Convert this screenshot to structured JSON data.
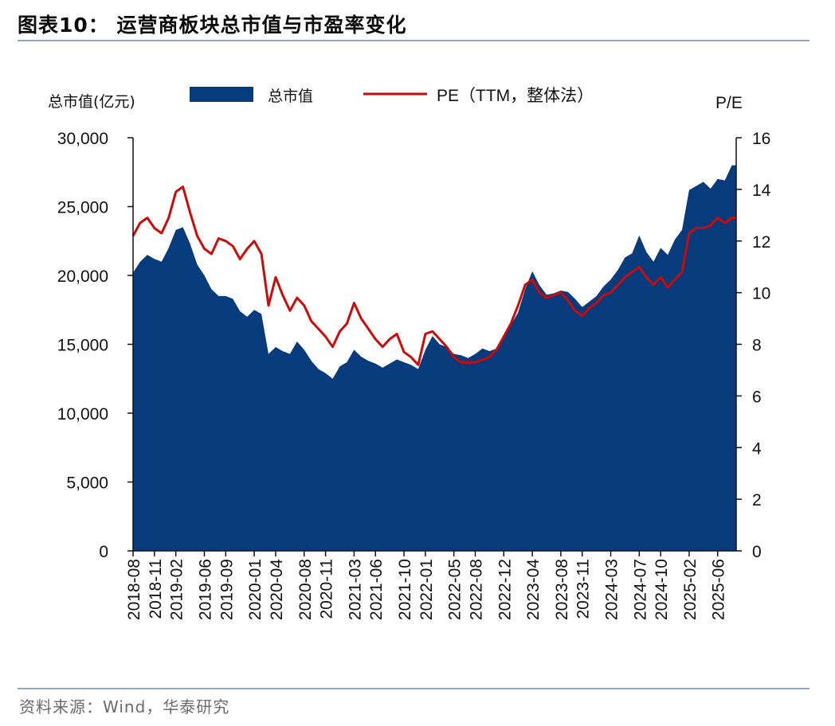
{
  "header": {
    "title": "图表10： 运营商板块总市值与市盈率变化"
  },
  "footer": {
    "source": "资料来源：Wind，华泰研究"
  },
  "colors": {
    "area": "#063b7c",
    "line": "#cc0a0a",
    "rule": "#8ea5c4"
  },
  "chart_data": {
    "type": "area",
    "left_axis": {
      "label": "总市值(亿元)",
      "min": 0,
      "max": 30000,
      "ticks": [
        "0",
        "5,000",
        "10,000",
        "15,000",
        "20,000",
        "25,000",
        "30,000"
      ]
    },
    "right_axis": {
      "label": "P/E",
      "min": 0,
      "max": 16,
      "ticks": [
        "0",
        "2",
        "4",
        "6",
        "8",
        "10",
        "12",
        "14",
        "16"
      ]
    },
    "x_ticks": [
      "2018-08",
      "2018-11",
      "2019-02",
      "2019-06",
      "2019-09",
      "2020-01",
      "2020-04",
      "2020-08",
      "2020-11",
      "2021-03",
      "2021-06",
      "2021-10",
      "2022-01",
      "2022-05",
      "2022-08",
      "2022-12",
      "2023-04",
      "2023-08",
      "2023-11",
      "2024-03",
      "2024-07",
      "2024-10",
      "2025-02",
      "2025-06"
    ],
    "legend": {
      "placement": "top",
      "items": [
        "总市值",
        "PE（TTM，整体法）"
      ]
    },
    "series": [
      {
        "name": "总市值",
        "axis": "left",
        "kind": "area",
        "points": [
          [
            "2018-08",
            20200
          ],
          [
            "2018-09",
            21000
          ],
          [
            "2018-10",
            21500
          ],
          [
            "2018-11",
            21200
          ],
          [
            "2018-12",
            21000
          ],
          [
            "2019-01",
            22000
          ],
          [
            "2019-02",
            23300
          ],
          [
            "2019-03",
            23500
          ],
          [
            "2019-04",
            22300
          ],
          [
            "2019-05",
            20800
          ],
          [
            "2019-06",
            20000
          ],
          [
            "2019-07",
            19000
          ],
          [
            "2019-08",
            18500
          ],
          [
            "2019-09",
            18500
          ],
          [
            "2019-10",
            18300
          ],
          [
            "2019-11",
            17400
          ],
          [
            "2019-12",
            17000
          ],
          [
            "2020-01",
            17500
          ],
          [
            "2020-02",
            17200
          ],
          [
            "2020-03",
            14300
          ],
          [
            "2020-04",
            14800
          ],
          [
            "2020-05",
            14500
          ],
          [
            "2020-06",
            14300
          ],
          [
            "2020-07",
            15200
          ],
          [
            "2020-08",
            14600
          ],
          [
            "2020-09",
            13800
          ],
          [
            "2020-10",
            13200
          ],
          [
            "2020-11",
            12900
          ],
          [
            "2020-12",
            12500
          ],
          [
            "2021-01",
            13400
          ],
          [
            "2021-02",
            13700
          ],
          [
            "2021-03",
            14600
          ],
          [
            "2021-04",
            14100
          ],
          [
            "2021-05",
            13800
          ],
          [
            "2021-06",
            13600
          ],
          [
            "2021-07",
            13300
          ],
          [
            "2021-08",
            13600
          ],
          [
            "2021-09",
            13900
          ],
          [
            "2021-10",
            13700
          ],
          [
            "2021-11",
            13500
          ],
          [
            "2021-12",
            13200
          ],
          [
            "2022-01",
            14600
          ],
          [
            "2022-02",
            15600
          ],
          [
            "2022-03",
            15000
          ],
          [
            "2022-04",
            14800
          ],
          [
            "2022-05",
            14300
          ],
          [
            "2022-06",
            14200
          ],
          [
            "2022-07",
            14000
          ],
          [
            "2022-08",
            14300
          ],
          [
            "2022-09",
            14700
          ],
          [
            "2022-10",
            14500
          ],
          [
            "2022-11",
            14700
          ],
          [
            "2022-12",
            15600
          ],
          [
            "2023-01",
            16400
          ],
          [
            "2023-02",
            17300
          ],
          [
            "2023-03",
            19000
          ],
          [
            "2023-04",
            20300
          ],
          [
            "2023-05",
            19300
          ],
          [
            "2023-06",
            18600
          ],
          [
            "2023-07",
            18700
          ],
          [
            "2023-08",
            18900
          ],
          [
            "2023-09",
            18800
          ],
          [
            "2023-10",
            18300
          ],
          [
            "2023-11",
            17700
          ],
          [
            "2023-12",
            18100
          ],
          [
            "2024-01",
            18500
          ],
          [
            "2024-02",
            19200
          ],
          [
            "2024-03",
            19700
          ],
          [
            "2024-04",
            20400
          ],
          [
            "2024-05",
            21300
          ],
          [
            "2024-06",
            21600
          ],
          [
            "2024-07",
            22900
          ],
          [
            "2024-08",
            21700
          ],
          [
            "2024-09",
            21000
          ],
          [
            "2024-10",
            22000
          ],
          [
            "2024-11",
            21500
          ],
          [
            "2024-12",
            22600
          ],
          [
            "2025-01",
            23300
          ],
          [
            "2025-02",
            26200
          ],
          [
            "2025-03",
            26500
          ],
          [
            "2025-04",
            26800
          ],
          [
            "2025-05",
            26300
          ],
          [
            "2025-06",
            27000
          ],
          [
            "2025-07",
            26900
          ],
          [
            "2025-08",
            28000
          ]
        ]
      },
      {
        "name": "PE（TTM，整体法）",
        "axis": "right",
        "kind": "line",
        "points": [
          [
            "2018-08",
            12.2
          ],
          [
            "2018-09",
            12.7
          ],
          [
            "2018-10",
            12.9
          ],
          [
            "2018-11",
            12.5
          ],
          [
            "2018-12",
            12.3
          ],
          [
            "2019-01",
            12.9
          ],
          [
            "2019-02",
            13.9
          ],
          [
            "2019-03",
            14.1
          ],
          [
            "2019-04",
            13.1
          ],
          [
            "2019-05",
            12.2
          ],
          [
            "2019-06",
            11.7
          ],
          [
            "2019-07",
            11.5
          ],
          [
            "2019-08",
            12.1
          ],
          [
            "2019-09",
            12.0
          ],
          [
            "2019-10",
            11.8
          ],
          [
            "2019-11",
            11.3
          ],
          [
            "2019-12",
            11.7
          ],
          [
            "2020-01",
            12.0
          ],
          [
            "2020-02",
            11.5
          ],
          [
            "2020-03",
            9.5
          ],
          [
            "2020-04",
            10.6
          ],
          [
            "2020-05",
            9.9
          ],
          [
            "2020-06",
            9.3
          ],
          [
            "2020-07",
            9.8
          ],
          [
            "2020-08",
            9.5
          ],
          [
            "2020-09",
            8.9
          ],
          [
            "2020-10",
            8.6
          ],
          [
            "2020-11",
            8.3
          ],
          [
            "2020-12",
            7.9
          ],
          [
            "2021-01",
            8.5
          ],
          [
            "2021-02",
            8.8
          ],
          [
            "2021-03",
            9.6
          ],
          [
            "2021-04",
            9.0
          ],
          [
            "2021-05",
            8.6
          ],
          [
            "2021-06",
            8.2
          ],
          [
            "2021-07",
            7.9
          ],
          [
            "2021-08",
            8.2
          ],
          [
            "2021-09",
            8.4
          ],
          [
            "2021-10",
            7.7
          ],
          [
            "2021-11",
            7.5
          ],
          [
            "2021-12",
            7.2
          ],
          [
            "2022-01",
            8.4
          ],
          [
            "2022-02",
            8.5
          ],
          [
            "2022-03",
            8.2
          ],
          [
            "2022-04",
            7.9
          ],
          [
            "2022-05",
            7.5
          ],
          [
            "2022-06",
            7.3
          ],
          [
            "2022-07",
            7.3
          ],
          [
            "2022-08",
            7.3
          ],
          [
            "2022-09",
            7.4
          ],
          [
            "2022-10",
            7.5
          ],
          [
            "2022-11",
            7.8
          ],
          [
            "2022-12",
            8.3
          ],
          [
            "2023-01",
            8.8
          ],
          [
            "2023-02",
            9.5
          ],
          [
            "2023-03",
            10.3
          ],
          [
            "2023-04",
            10.5
          ],
          [
            "2023-05",
            10.0
          ],
          [
            "2023-06",
            9.8
          ],
          [
            "2023-07",
            9.9
          ],
          [
            "2023-08",
            10.0
          ],
          [
            "2023-09",
            9.7
          ],
          [
            "2023-10",
            9.3
          ],
          [
            "2023-11",
            9.1
          ],
          [
            "2023-12",
            9.4
          ],
          [
            "2024-01",
            9.6
          ],
          [
            "2024-02",
            9.9
          ],
          [
            "2024-03",
            10.0
          ],
          [
            "2024-04",
            10.3
          ],
          [
            "2024-05",
            10.6
          ],
          [
            "2024-06",
            10.8
          ],
          [
            "2024-07",
            11.0
          ],
          [
            "2024-08",
            10.6
          ],
          [
            "2024-09",
            10.3
          ],
          [
            "2024-10",
            10.6
          ],
          [
            "2024-11",
            10.2
          ],
          [
            "2024-12",
            10.5
          ],
          [
            "2025-01",
            10.8
          ],
          [
            "2025-02",
            12.3
          ],
          [
            "2025-03",
            12.5
          ],
          [
            "2025-04",
            12.5
          ],
          [
            "2025-05",
            12.6
          ],
          [
            "2025-06",
            12.9
          ],
          [
            "2025-07",
            12.7
          ],
          [
            "2025-08",
            12.9
          ]
        ]
      }
    ],
    "grid": false
  }
}
